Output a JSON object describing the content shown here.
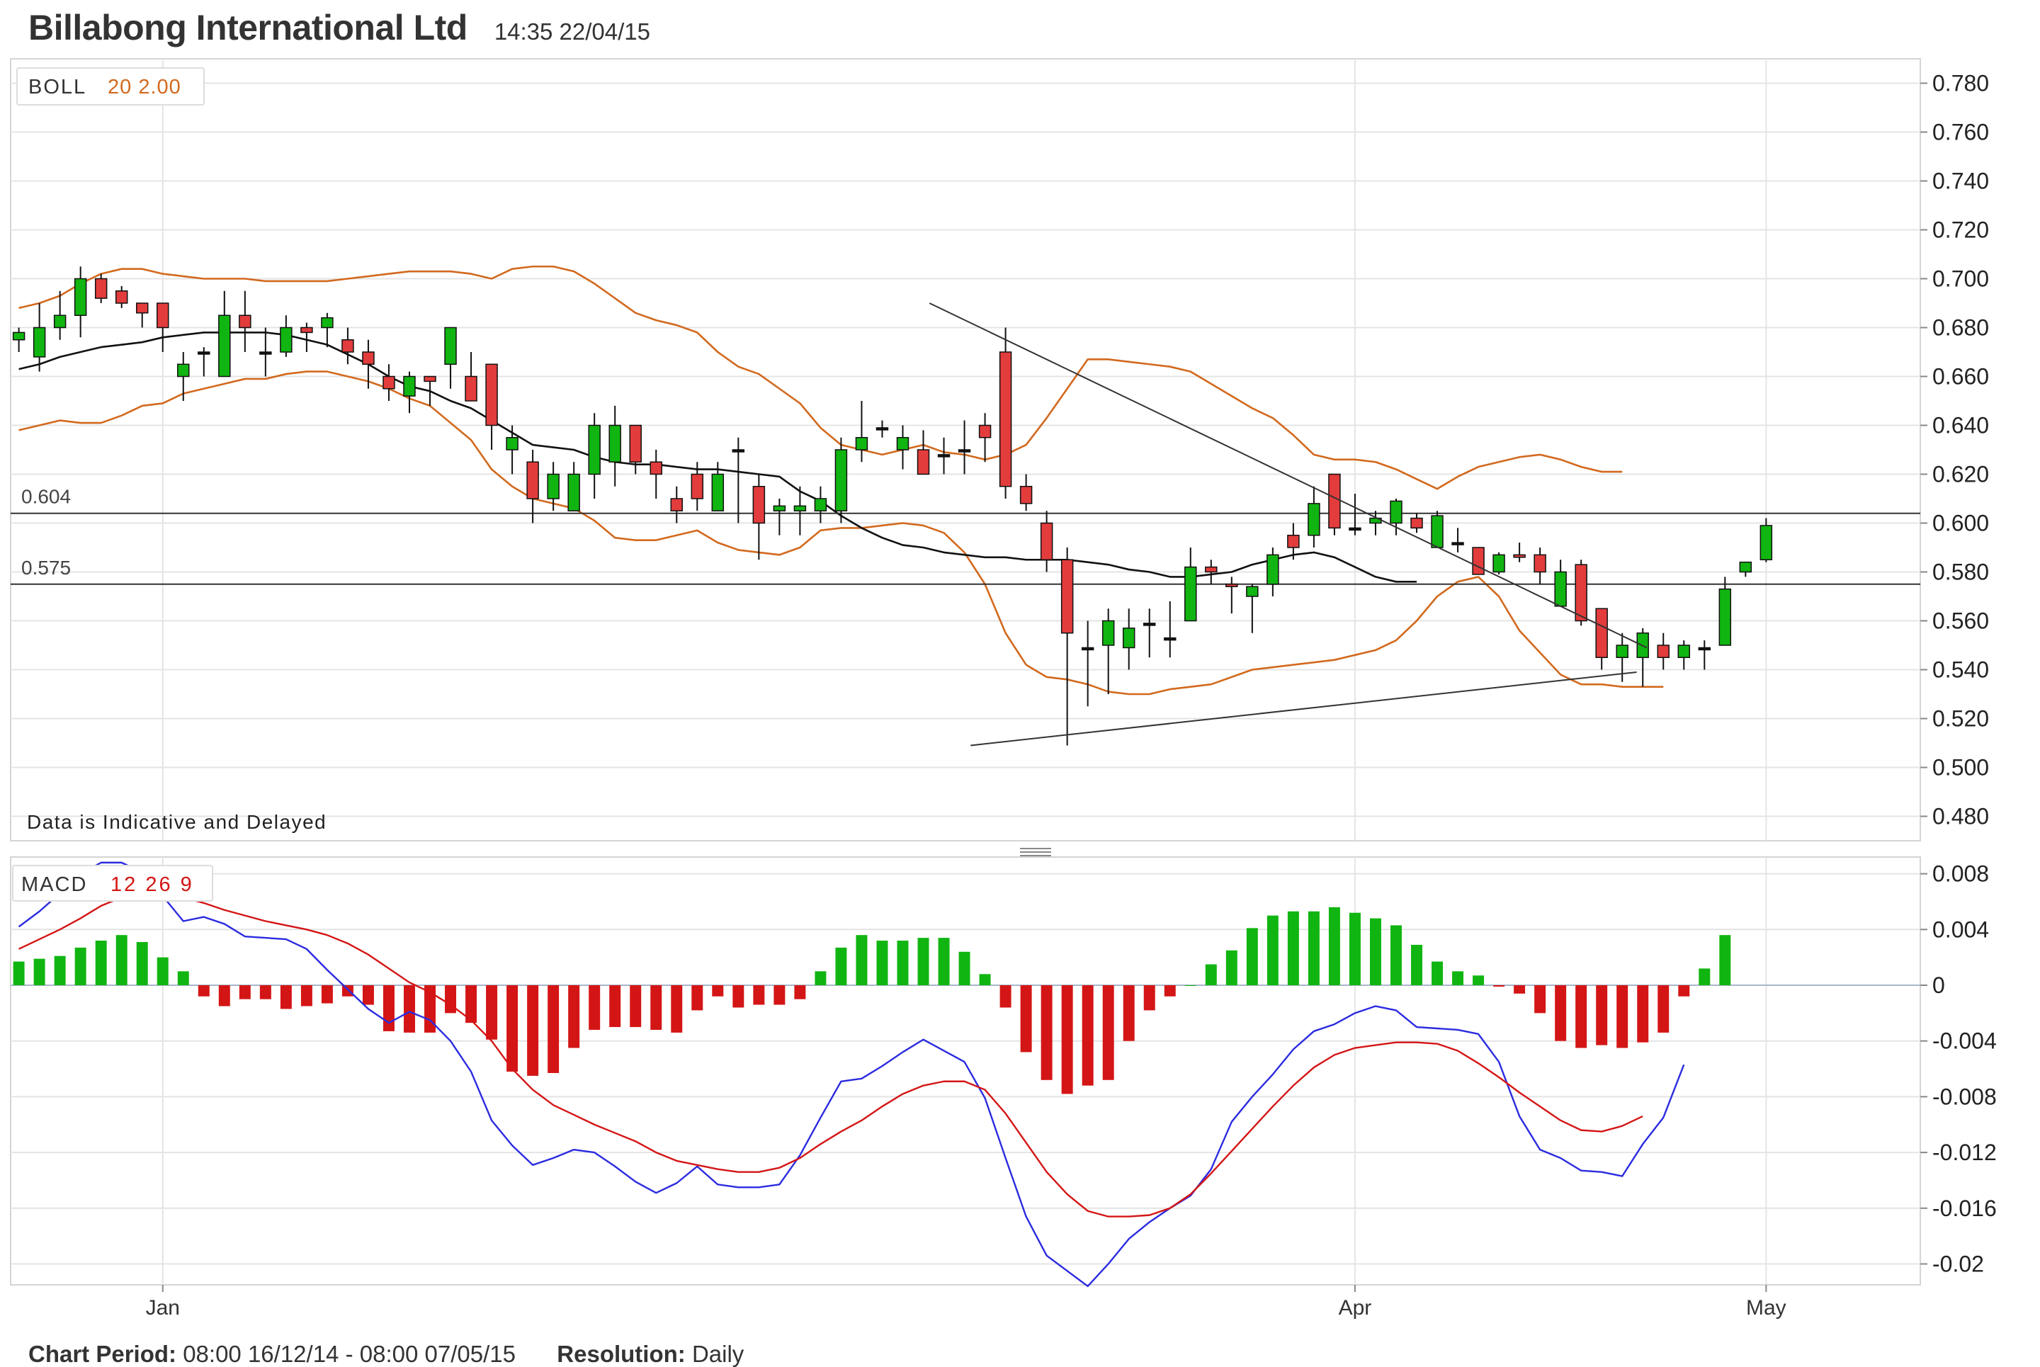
{
  "header": {
    "title": "Billabong International Ltd",
    "timestamp": "14:35 22/04/15"
  },
  "legend": {
    "boll": {
      "name": "BOLL",
      "params": "20 2.00"
    },
    "macd": {
      "name": "MACD",
      "params": "12 26 9"
    }
  },
  "notice": "Data is Indicative and Delayed",
  "footer": {
    "period_label": "Chart Period:",
    "period_value": "08:00 16/12/14 - 08:00 07/05/15",
    "resolution_label": "Resolution:",
    "resolution_value": "Daily"
  },
  "colors": {
    "up": "#11b511",
    "down": "#e23c3c",
    "band": "#d2691e",
    "mid": "#111111",
    "macd": "#2b2be0",
    "signal": "#d41515",
    "grid": "#e4e4e4"
  },
  "chart_data": [
    {
      "type": "candlestick",
      "indicator": "BOLL 20 2.00",
      "ylim": [
        0.47,
        0.79
      ],
      "y_ticks": [
        "0.780",
        "0.760",
        "0.740",
        "0.720",
        "0.700",
        "0.680",
        "0.660",
        "0.640",
        "0.620",
        "0.600",
        "0.580",
        "0.560",
        "0.540",
        "0.520",
        "0.500",
        "0.480"
      ],
      "x_ticks": [
        {
          "label": "Jan",
          "index": 7
        },
        {
          "label": "Apr",
          "index": 65
        },
        {
          "label": "May",
          "index": 85
        }
      ],
      "x_range": [
        -0.4,
        92.5
      ],
      "h_lines": [
        {
          "label": "0.604",
          "value": 0.604
        },
        {
          "label": "0.575",
          "value": 0.575
        }
      ],
      "trendlines": [
        {
          "from": [
            44.3,
            0.69
          ],
          "to": [
            79.2,
            0.549
          ]
        },
        {
          "from": [
            46.3,
            0.509
          ],
          "to": [
            78.7,
            0.539
          ]
        }
      ],
      "ohlc": [
        [
          0.675,
          0.68,
          0.67,
          0.678
        ],
        [
          0.668,
          0.69,
          0.662,
          0.68
        ],
        [
          0.68,
          0.695,
          0.675,
          0.685
        ],
        [
          0.685,
          0.705,
          0.676,
          0.7
        ],
        [
          0.7,
          0.702,
          0.69,
          0.692
        ],
        [
          0.695,
          0.697,
          0.688,
          0.69
        ],
        [
          0.69,
          0.69,
          0.68,
          0.686
        ],
        [
          0.69,
          0.69,
          0.67,
          0.68
        ],
        [
          0.66,
          0.67,
          0.65,
          0.665
        ],
        [
          0.67,
          0.672,
          0.66,
          0.67
        ],
        [
          0.66,
          0.695,
          0.66,
          0.685
        ],
        [
          0.685,
          0.695,
          0.67,
          0.68
        ],
        [
          0.67,
          0.68,
          0.66,
          0.67
        ],
        [
          0.67,
          0.685,
          0.668,
          0.68
        ],
        [
          0.68,
          0.682,
          0.67,
          0.678
        ],
        [
          0.68,
          0.686,
          0.672,
          0.684
        ],
        [
          0.675,
          0.68,
          0.665,
          0.67
        ],
        [
          0.67,
          0.675,
          0.655,
          0.665
        ],
        [
          0.66,
          0.665,
          0.65,
          0.655
        ],
        [
          0.652,
          0.662,
          0.645,
          0.66
        ],
        [
          0.66,
          0.66,
          0.648,
          0.658
        ],
        [
          0.665,
          0.68,
          0.655,
          0.68
        ],
        [
          0.66,
          0.67,
          0.65,
          0.65
        ],
        [
          0.665,
          0.665,
          0.63,
          0.64
        ],
        [
          0.63,
          0.64,
          0.62,
          0.635
        ],
        [
          0.625,
          0.63,
          0.6,
          0.61
        ],
        [
          0.61,
          0.625,
          0.605,
          0.62
        ],
        [
          0.605,
          0.625,
          0.605,
          0.62
        ],
        [
          0.62,
          0.645,
          0.61,
          0.64
        ],
        [
          0.625,
          0.648,
          0.615,
          0.64
        ],
        [
          0.64,
          0.64,
          0.62,
          0.625
        ],
        [
          0.625,
          0.63,
          0.61,
          0.62
        ],
        [
          0.61,
          0.615,
          0.6,
          0.605
        ],
        [
          0.62,
          0.625,
          0.605,
          0.61
        ],
        [
          0.605,
          0.625,
          0.605,
          0.62
        ],
        [
          0.63,
          0.635,
          0.6,
          0.63
        ],
        [
          0.615,
          0.62,
          0.585,
          0.6
        ],
        [
          0.605,
          0.61,
          0.595,
          0.607
        ],
        [
          0.605,
          0.615,
          0.595,
          0.607
        ],
        [
          0.605,
          0.615,
          0.6,
          0.61
        ],
        [
          0.605,
          0.635,
          0.6,
          0.63
        ],
        [
          0.63,
          0.65,
          0.625,
          0.635
        ],
        [
          0.639,
          0.642,
          0.635,
          0.639
        ],
        [
          0.63,
          0.64,
          0.622,
          0.635
        ],
        [
          0.63,
          0.638,
          0.62,
          0.62
        ],
        [
          0.628,
          0.635,
          0.62,
          0.628
        ],
        [
          0.63,
          0.642,
          0.62,
          0.63
        ],
        [
          0.64,
          0.645,
          0.625,
          0.635
        ],
        [
          0.67,
          0.68,
          0.61,
          0.615
        ],
        [
          0.615,
          0.62,
          0.605,
          0.608
        ],
        [
          0.6,
          0.605,
          0.58,
          0.585
        ],
        [
          0.585,
          0.59,
          0.509,
          0.555
        ],
        [
          0.549,
          0.56,
          0.525,
          0.549
        ],
        [
          0.55,
          0.565,
          0.53,
          0.56
        ],
        [
          0.549,
          0.565,
          0.54,
          0.557
        ],
        [
          0.559,
          0.565,
          0.545,
          0.559
        ],
        [
          0.553,
          0.568,
          0.545,
          0.553
        ],
        [
          0.56,
          0.59,
          0.56,
          0.582
        ],
        [
          0.582,
          0.585,
          0.575,
          0.58
        ],
        [
          0.575,
          0.578,
          0.563,
          0.574
        ],
        [
          0.57,
          0.575,
          0.555,
          0.574
        ],
        [
          0.575,
          0.59,
          0.57,
          0.587
        ],
        [
          0.595,
          0.6,
          0.585,
          0.59
        ],
        [
          0.595,
          0.615,
          0.59,
          0.608
        ],
        [
          0.62,
          0.62,
          0.595,
          0.598
        ],
        [
          0.598,
          0.612,
          0.595,
          0.598
        ],
        [
          0.6,
          0.605,
          0.595,
          0.602
        ],
        [
          0.6,
          0.61,
          0.595,
          0.609
        ],
        [
          0.602,
          0.604,
          0.596,
          0.598
        ],
        [
          0.59,
          0.605,
          0.59,
          0.603
        ],
        [
          0.592,
          0.598,
          0.588,
          0.592
        ],
        [
          0.59,
          0.59,
          0.579,
          0.579
        ],
        [
          0.58,
          0.588,
          0.579,
          0.587
        ],
        [
          0.587,
          0.592,
          0.584,
          0.586
        ],
        [
          0.587,
          0.59,
          0.575,
          0.58
        ],
        [
          0.566,
          0.585,
          0.566,
          0.58
        ],
        [
          0.583,
          0.585,
          0.558,
          0.56
        ],
        [
          0.565,
          0.565,
          0.54,
          0.545
        ],
        [
          0.545,
          0.555,
          0.535,
          0.55
        ],
        [
          0.545,
          0.557,
          0.533,
          0.555
        ],
        [
          0.55,
          0.555,
          0.54,
          0.545
        ],
        [
          0.545,
          0.552,
          0.54,
          0.55
        ],
        [
          0.549,
          0.552,
          0.54,
          0.549
        ],
        [
          0.55,
          0.578,
          0.55,
          0.573
        ],
        [
          0.58,
          0.584,
          0.578,
          0.584
        ],
        [
          0.585,
          0.602,
          0.584,
          0.599
        ]
      ],
      "upper_band": [
        0.688,
        0.69,
        0.693,
        0.698,
        0.702,
        0.704,
        0.704,
        0.702,
        0.701,
        0.7,
        0.7,
        0.7,
        0.699,
        0.699,
        0.699,
        0.699,
        0.7,
        0.701,
        0.702,
        0.703,
        0.703,
        0.703,
        0.702,
        0.7,
        0.704,
        0.705,
        0.705,
        0.703,
        0.698,
        0.692,
        0.686,
        0.683,
        0.681,
        0.678,
        0.67,
        0.664,
        0.661,
        0.655,
        0.649,
        0.639,
        0.632,
        0.63,
        0.628,
        0.63,
        0.632,
        0.629,
        0.628,
        0.626,
        0.628,
        0.632,
        0.643,
        0.655,
        0.667,
        0.667,
        0.666,
        0.665,
        0.664,
        0.662,
        0.657,
        0.652,
        0.647,
        0.643,
        0.636,
        0.628,
        0.626,
        0.626,
        0.625,
        0.622,
        0.618,
        0.614,
        0.619,
        0.623,
        0.625,
        0.627,
        0.628,
        0.626,
        0.623,
        0.621,
        0.621
      ],
      "middle_band": [
        0.663,
        0.665,
        0.668,
        0.67,
        0.672,
        0.673,
        0.674,
        0.676,
        0.677,
        0.678,
        0.678,
        0.678,
        0.678,
        0.677,
        0.675,
        0.673,
        0.669,
        0.665,
        0.66,
        0.656,
        0.654,
        0.65,
        0.647,
        0.642,
        0.637,
        0.632,
        0.631,
        0.63,
        0.627,
        0.625,
        0.624,
        0.624,
        0.623,
        0.622,
        0.622,
        0.621,
        0.62,
        0.619,
        0.613,
        0.609,
        0.603,
        0.598,
        0.594,
        0.591,
        0.59,
        0.588,
        0.587,
        0.586,
        0.586,
        0.585,
        0.585,
        0.585,
        0.584,
        0.583,
        0.581,
        0.58,
        0.578,
        0.578,
        0.579,
        0.58,
        0.583,
        0.585,
        0.587,
        0.588,
        0.586,
        0.582,
        0.578,
        0.576,
        0.576
      ],
      "lower_band": [
        0.638,
        0.64,
        0.642,
        0.641,
        0.641,
        0.644,
        0.648,
        0.649,
        0.653,
        0.655,
        0.657,
        0.659,
        0.659,
        0.661,
        0.662,
        0.662,
        0.66,
        0.658,
        0.655,
        0.651,
        0.648,
        0.641,
        0.634,
        0.622,
        0.615,
        0.61,
        0.608,
        0.606,
        0.601,
        0.594,
        0.593,
        0.593,
        0.595,
        0.597,
        0.592,
        0.589,
        0.588,
        0.587,
        0.59,
        0.597,
        0.598,
        0.598,
        0.599,
        0.6,
        0.599,
        0.596,
        0.588,
        0.575,
        0.555,
        0.542,
        0.537,
        0.536,
        0.534,
        0.531,
        0.53,
        0.53,
        0.532,
        0.533,
        0.534,
        0.537,
        0.54,
        0.541,
        0.542,
        0.543,
        0.544,
        0.546,
        0.548,
        0.552,
        0.56,
        0.57,
        0.576,
        0.578,
        0.57,
        0.556,
        0.547,
        0.538,
        0.534,
        0.534,
        0.533,
        0.533,
        0.533
      ]
    },
    {
      "type": "macd",
      "indicator": "MACD 12 26 9",
      "ylim": [
        -0.0215,
        0.0092
      ],
      "y_ticks": [
        {
          "label": "0.008",
          "value": 0.008
        },
        {
          "label": "0.004",
          "value": 0.004
        },
        {
          "label": "0",
          "value": 0
        },
        {
          "label": "-0.004",
          "value": -0.004
        },
        {
          "label": "-0.008",
          "value": -0.008
        },
        {
          "label": "-0.012",
          "value": -0.012
        },
        {
          "label": "-0.016",
          "value": -0.016
        },
        {
          "label": "-0.02",
          "value": -0.02
        }
      ],
      "macd": [
        0.0042,
        0.0053,
        0.0066,
        0.008,
        0.0088,
        0.0088,
        0.0081,
        0.0064,
        0.0046,
        0.0049,
        0.0044,
        0.0035,
        0.0034,
        0.0033,
        0.0026,
        0.0011,
        -0.0003,
        -0.0017,
        -0.0027,
        -0.0019,
        -0.0025,
        -0.004,
        -0.0062,
        -0.0097,
        -0.0115,
        -0.0129,
        -0.0124,
        -0.0118,
        -0.012,
        -0.013,
        -0.0141,
        -0.0149,
        -0.0142,
        -0.013,
        -0.0143,
        -0.0145,
        -0.0145,
        -0.0143,
        -0.0122,
        -0.0095,
        -0.0069,
        -0.0067,
        -0.0058,
        -0.0048,
        -0.0039,
        -0.0047,
        -0.0055,
        -0.0081,
        -0.0124,
        -0.0166,
        -0.0194,
        -0.0205,
        -0.0216,
        -0.02,
        -0.0182,
        -0.017,
        -0.016,
        -0.0151,
        -0.0132,
        -0.0098,
        -0.008,
        -0.0064,
        -0.0046,
        -0.0033,
        -0.0028,
        -0.002,
        -0.0015,
        -0.0018,
        -0.003,
        -0.0031,
        -0.0032,
        -0.0035,
        -0.0055,
        -0.0094,
        -0.0118,
        -0.0124,
        -0.0133,
        -0.0134,
        -0.0137,
        -0.0114,
        -0.0095,
        -0.0057
      ],
      "signal": [
        0.0026,
        0.0033,
        0.004,
        0.0048,
        0.0057,
        0.0063,
        0.0065,
        0.0065,
        0.0063,
        0.0059,
        0.0054,
        0.005,
        0.0046,
        0.0043,
        0.004,
        0.0036,
        0.003,
        0.0022,
        0.0012,
        0.0002,
        -0.0005,
        -0.0014,
        -0.0025,
        -0.004,
        -0.006,
        -0.0075,
        -0.0086,
        -0.0093,
        -0.01,
        -0.0106,
        -0.0112,
        -0.012,
        -0.0126,
        -0.0129,
        -0.0132,
        -0.0134,
        -0.0134,
        -0.0131,
        -0.0124,
        -0.0114,
        -0.0105,
        -0.0097,
        -0.0087,
        -0.0078,
        -0.0072,
        -0.0069,
        -0.0069,
        -0.0075,
        -0.0092,
        -0.0113,
        -0.0134,
        -0.015,
        -0.0162,
        -0.0166,
        -0.0166,
        -0.0165,
        -0.016,
        -0.015,
        -0.0135,
        -0.0119,
        -0.0103,
        -0.0087,
        -0.0072,
        -0.0059,
        -0.005,
        -0.0045,
        -0.0043,
        -0.0041,
        -0.0041,
        -0.0042,
        -0.0047,
        -0.0056,
        -0.0066,
        -0.0077,
        -0.0087,
        -0.0097,
        -0.0104,
        -0.0105,
        -0.0101,
        -0.0094
      ],
      "histogram": [
        0.0017,
        0.0019,
        0.0021,
        0.0027,
        0.0032,
        0.0036,
        0.0031,
        0.002,
        0.001,
        -0.0008,
        -0.0015,
        -0.001,
        -0.001,
        -0.0017,
        -0.0015,
        -0.0013,
        -0.0008,
        -0.0014,
        -0.0033,
        -0.0034,
        -0.0034,
        -0.002,
        -0.0027,
        -0.0039,
        -0.0062,
        -0.0065,
        -0.0063,
        -0.0045,
        -0.0032,
        -0.003,
        -0.003,
        -0.0032,
        -0.0034,
        -0.0018,
        -0.0008,
        -0.0016,
        -0.0014,
        -0.0014,
        -0.001,
        0.001,
        0.0027,
        0.0036,
        0.0032,
        0.0032,
        0.0034,
        0.0034,
        0.0024,
        0.0008,
        -0.0016,
        -0.0048,
        -0.0068,
        -0.0078,
        -0.0072,
        -0.0068,
        -0.004,
        -0.0018,
        -0.0008,
        0.0,
        0.0015,
        0.0025,
        0.0041,
        0.005,
        0.0053,
        0.0053,
        0.0056,
        0.0052,
        0.0048,
        0.0043,
        0.0029,
        0.0017,
        0.001,
        0.0007,
        -0.0001,
        -0.0006,
        -0.002,
        -0.004,
        -0.0045,
        -0.0043,
        -0.0045,
        -0.0041,
        -0.0034,
        -0.0008,
        0.0012,
        0.0036
      ]
    }
  ]
}
